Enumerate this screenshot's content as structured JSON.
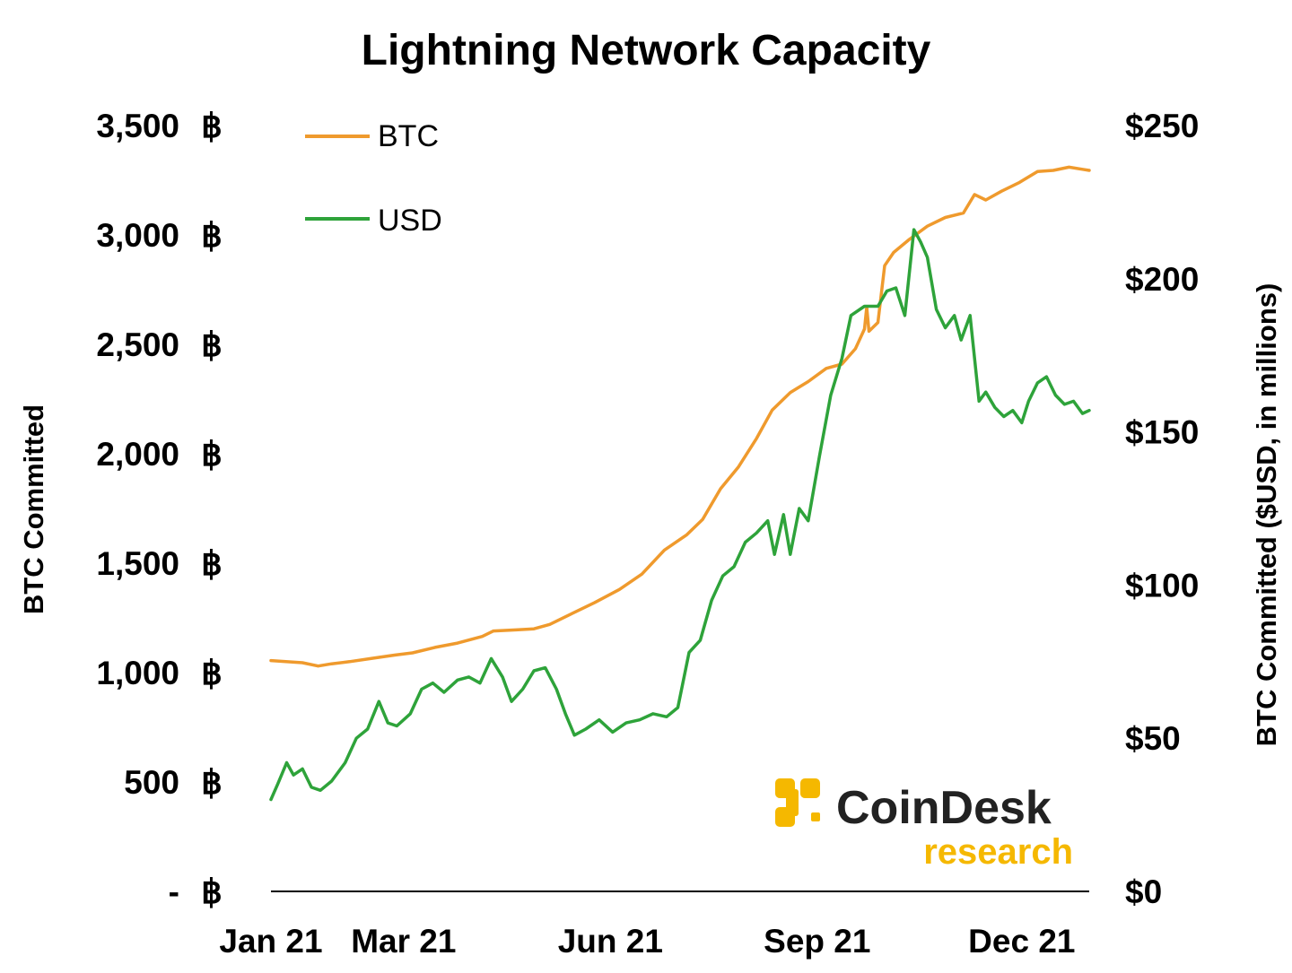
{
  "chart_data": {
    "type": "line",
    "title": "Lightning Network Capacity",
    "ylabel": "BTC Committed",
    "ylabel_right": "BTC Committed ($USD, in millions)",
    "ylim": [
      0,
      3500
    ],
    "ylim_right": [
      0,
      250
    ],
    "yticks": [
      {
        "value": 0,
        "label": "-",
        "unit": "฿"
      },
      {
        "value": 500,
        "label": "500",
        "unit": "฿"
      },
      {
        "value": 1000,
        "label": "1,000",
        "unit": "฿"
      },
      {
        "value": 1500,
        "label": "1,500",
        "unit": "฿"
      },
      {
        "value": 2000,
        "label": "2,000",
        "unit": "฿"
      },
      {
        "value": 2500,
        "label": "2,500",
        "unit": "฿"
      },
      {
        "value": 3000,
        "label": "3,000",
        "unit": "฿"
      },
      {
        "value": 3500,
        "label": "3,500",
        "unit": "฿"
      }
    ],
    "yticks_right": [
      {
        "value": 0,
        "label": "$0"
      },
      {
        "value": 50,
        "label": "$50"
      },
      {
        "value": 100,
        "label": "$100"
      },
      {
        "value": 150,
        "label": "$150"
      },
      {
        "value": 200,
        "label": "$200"
      },
      {
        "value": 250,
        "label": "$250"
      }
    ],
    "xticks": [
      {
        "x": "2021-01-01",
        "label": "Jan 21"
      },
      {
        "x": "2021-03-01",
        "label": "Mar 21"
      },
      {
        "x": "2021-06-01",
        "label": "Jun 21"
      },
      {
        "x": "2021-09-01",
        "label": "Sep 21"
      },
      {
        "x": "2021-12-01",
        "label": "Dec 21"
      }
    ],
    "xlim": [
      "2021-01-01",
      "2021-12-31"
    ],
    "legend_position": "top-left",
    "grid": false,
    "series": [
      {
        "name": "BTC",
        "axis": "left",
        "color": "#ef9a2d",
        "points": [
          [
            "2021-01-01",
            1055
          ],
          [
            "2021-01-15",
            1045
          ],
          [
            "2021-01-22",
            1030
          ],
          [
            "2021-01-28",
            1040
          ],
          [
            "2021-02-05",
            1050
          ],
          [
            "2021-02-15",
            1065
          ],
          [
            "2021-02-25",
            1080
          ],
          [
            "2021-03-05",
            1090
          ],
          [
            "2021-03-15",
            1115
          ],
          [
            "2021-03-25",
            1135
          ],
          [
            "2021-04-05",
            1165
          ],
          [
            "2021-04-10",
            1190
          ],
          [
            "2021-04-20",
            1195
          ],
          [
            "2021-04-28",
            1200
          ],
          [
            "2021-05-05",
            1220
          ],
          [
            "2021-05-15",
            1270
          ],
          [
            "2021-05-25",
            1320
          ],
          [
            "2021-06-05",
            1380
          ],
          [
            "2021-06-15",
            1450
          ],
          [
            "2021-06-25",
            1560
          ],
          [
            "2021-07-05",
            1630
          ],
          [
            "2021-07-12",
            1700
          ],
          [
            "2021-07-20",
            1840
          ],
          [
            "2021-07-28",
            1940
          ],
          [
            "2021-08-05",
            2070
          ],
          [
            "2021-08-12",
            2200
          ],
          [
            "2021-08-20",
            2280
          ],
          [
            "2021-08-28",
            2330
          ],
          [
            "2021-09-05",
            2390
          ],
          [
            "2021-09-12",
            2410
          ],
          [
            "2021-09-18",
            2480
          ],
          [
            "2021-09-22",
            2570
          ],
          [
            "2021-09-23",
            2670
          ],
          [
            "2021-09-24",
            2560
          ],
          [
            "2021-09-28",
            2600
          ],
          [
            "2021-10-01",
            2860
          ],
          [
            "2021-10-05",
            2920
          ],
          [
            "2021-10-12",
            2980
          ],
          [
            "2021-10-20",
            3040
          ],
          [
            "2021-10-28",
            3080
          ],
          [
            "2021-11-05",
            3100
          ],
          [
            "2021-11-10",
            3185
          ],
          [
            "2021-11-15",
            3160
          ],
          [
            "2021-11-22",
            3200
          ],
          [
            "2021-11-30",
            3240
          ],
          [
            "2021-12-08",
            3290
          ],
          [
            "2021-12-15",
            3295
          ],
          [
            "2021-12-22",
            3310
          ],
          [
            "2021-12-28",
            3300
          ],
          [
            "2021-12-31",
            3295
          ]
        ]
      },
      {
        "name": "USD",
        "axis": "right",
        "color": "#2ea33a",
        "points": [
          [
            "2021-01-01",
            30
          ],
          [
            "2021-01-04",
            35
          ],
          [
            "2021-01-08",
            42
          ],
          [
            "2021-01-11",
            38
          ],
          [
            "2021-01-15",
            40
          ],
          [
            "2021-01-19",
            34
          ],
          [
            "2021-01-23",
            33
          ],
          [
            "2021-01-28",
            36
          ],
          [
            "2021-02-03",
            42
          ],
          [
            "2021-02-08",
            50
          ],
          [
            "2021-02-13",
            53
          ],
          [
            "2021-02-18",
            62
          ],
          [
            "2021-02-22",
            55
          ],
          [
            "2021-02-26",
            54
          ],
          [
            "2021-03-04",
            58
          ],
          [
            "2021-03-09",
            66
          ],
          [
            "2021-03-14",
            68
          ],
          [
            "2021-03-19",
            65
          ],
          [
            "2021-03-25",
            69
          ],
          [
            "2021-03-30",
            70
          ],
          [
            "2021-04-04",
            68
          ],
          [
            "2021-04-09",
            76
          ],
          [
            "2021-04-14",
            70
          ],
          [
            "2021-04-18",
            62
          ],
          [
            "2021-04-23",
            66
          ],
          [
            "2021-04-28",
            72
          ],
          [
            "2021-05-03",
            73
          ],
          [
            "2021-05-08",
            66
          ],
          [
            "2021-05-12",
            58
          ],
          [
            "2021-05-16",
            51
          ],
          [
            "2021-05-21",
            53
          ],
          [
            "2021-05-27",
            56
          ],
          [
            "2021-06-02",
            52
          ],
          [
            "2021-06-08",
            55
          ],
          [
            "2021-06-14",
            56
          ],
          [
            "2021-06-20",
            58
          ],
          [
            "2021-06-26",
            57
          ],
          [
            "2021-07-01",
            60
          ],
          [
            "2021-07-06",
            78
          ],
          [
            "2021-07-11",
            82
          ],
          [
            "2021-07-16",
            95
          ],
          [
            "2021-07-21",
            103
          ],
          [
            "2021-07-26",
            106
          ],
          [
            "2021-07-31",
            114
          ],
          [
            "2021-08-05",
            117
          ],
          [
            "2021-08-10",
            121
          ],
          [
            "2021-08-13",
            110
          ],
          [
            "2021-08-17",
            123
          ],
          [
            "2021-08-20",
            110
          ],
          [
            "2021-08-24",
            125
          ],
          [
            "2021-08-28",
            121
          ],
          [
            "2021-09-02",
            142
          ],
          [
            "2021-09-07",
            162
          ],
          [
            "2021-09-12",
            174
          ],
          [
            "2021-09-16",
            188
          ],
          [
            "2021-09-22",
            191
          ],
          [
            "2021-09-28",
            191
          ],
          [
            "2021-10-02",
            196
          ],
          [
            "2021-10-06",
            197
          ],
          [
            "2021-10-10",
            188
          ],
          [
            "2021-10-14",
            216
          ],
          [
            "2021-10-17",
            212
          ],
          [
            "2021-10-20",
            207
          ],
          [
            "2021-10-24",
            190
          ],
          [
            "2021-10-28",
            184
          ],
          [
            "2021-11-01",
            188
          ],
          [
            "2021-11-04",
            180
          ],
          [
            "2021-11-08",
            188
          ],
          [
            "2021-11-12",
            160
          ],
          [
            "2021-11-15",
            163
          ],
          [
            "2021-11-19",
            158
          ],
          [
            "2021-11-23",
            155
          ],
          [
            "2021-11-27",
            157
          ],
          [
            "2021-12-01",
            153
          ],
          [
            "2021-12-04",
            160
          ],
          [
            "2021-12-08",
            166
          ],
          [
            "2021-12-12",
            168
          ],
          [
            "2021-12-16",
            162
          ],
          [
            "2021-12-20",
            159
          ],
          [
            "2021-12-24",
            160
          ],
          [
            "2021-12-28",
            156
          ],
          [
            "2021-12-31",
            157
          ]
        ]
      }
    ]
  },
  "branding": {
    "name": "CoinDesk",
    "sub": "research",
    "icon": "coindesk-logo-icon",
    "accent_color": "#f5b800"
  }
}
